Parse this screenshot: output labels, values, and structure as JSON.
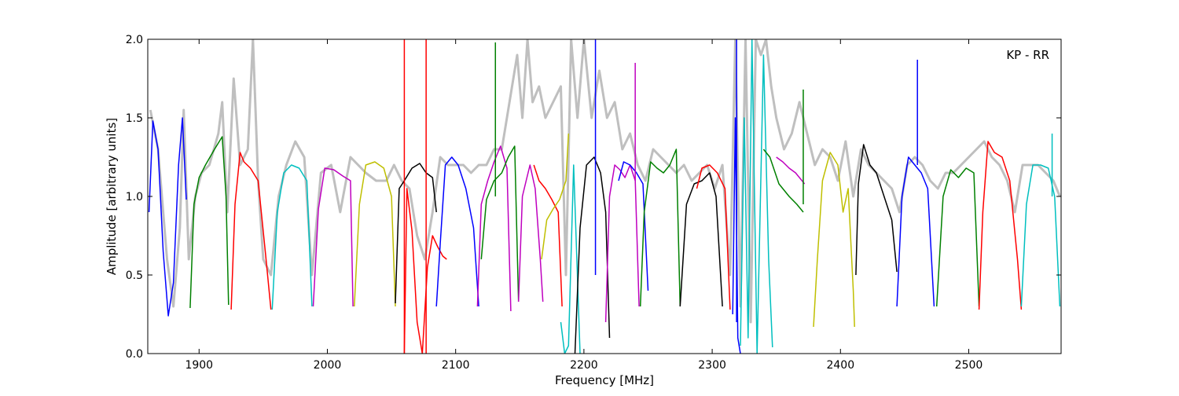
{
  "chart_data": {
    "type": "line",
    "title": "",
    "annotation": "KP - RR",
    "xlabel": "Frequency [MHz]",
    "ylabel": "Amplitude [arbitrary units]",
    "xlim": [
      1860,
      2572
    ],
    "ylim": [
      0.0,
      2.0
    ],
    "x_ticks": [
      1900,
      2000,
      2100,
      2200,
      2300,
      2400,
      2500
    ],
    "y_ticks": [
      0.0,
      0.5,
      1.0,
      1.5,
      2.0
    ],
    "y_tick_labels": [
      "0.0",
      "0.5",
      "1.0",
      "1.5",
      "2.0"
    ],
    "grid": false,
    "background_color": "#bfbfbf",
    "channel_colors": [
      "#0000ff",
      "#008000",
      "#ff0000",
      "#00bfbf",
      "#bf00bf",
      "#bfbf00",
      "#000000"
    ],
    "channels": [
      {
        "x": [
          1861,
          1864,
          1868,
          1872,
          1876,
          1880,
          1884,
          1887,
          1890
        ],
        "y": [
          0.9,
          1.48,
          1.3,
          0.65,
          0.24,
          0.45,
          1.2,
          1.5,
          0.98
        ],
        "color": "#0000ff"
      },
      {
        "x": [
          1893,
          1896,
          1900,
          1905,
          1912,
          1918,
          1921,
          1923
        ],
        "y": [
          0.29,
          0.95,
          1.12,
          1.2,
          1.3,
          1.38,
          1.0,
          0.31
        ],
        "color": "#008000"
      },
      {
        "x": [
          1925,
          1928,
          1932,
          1935,
          1940,
          1946,
          1952,
          1956
        ],
        "y": [
          0.28,
          0.95,
          1.28,
          1.22,
          1.18,
          1.1,
          0.62,
          0.28
        ],
        "color": "#ff0000"
      },
      {
        "x": [
          1957,
          1961,
          1966,
          1972,
          1978,
          1984,
          1988
        ],
        "y": [
          0.28,
          0.9,
          1.15,
          1.2,
          1.18,
          1.1,
          0.3
        ],
        "color": "#00bfbf"
      },
      {
        "x": [
          1989,
          1993,
          1998,
          2005,
          2012,
          2018,
          2020
        ],
        "y": [
          0.3,
          0.92,
          1.18,
          1.17,
          1.13,
          1.1,
          0.3
        ],
        "color": "#bf00bf"
      },
      {
        "x": [
          2021,
          2025,
          2030,
          2037,
          2044,
          2050,
          2053
        ],
        "y": [
          0.3,
          0.95,
          1.2,
          1.22,
          1.18,
          1.0,
          0.3
        ],
        "color": "#bfbf00"
      },
      {
        "x": [
          2053,
          2056,
          2060,
          2066,
          2072,
          2077,
          2082,
          2085
        ],
        "y": [
          0.32,
          1.05,
          1.1,
          1.18,
          1.21,
          1.15,
          1.12,
          0.9
        ],
        "color": "#000000"
      },
      {
        "x": [
          2060,
          2062,
          2066,
          2070,
          2074,
          2078,
          2082,
          2086,
          2090,
          2093
        ],
        "y": [
          0.0,
          1.05,
          0.78,
          0.2,
          0.0,
          0.55,
          0.75,
          0.68,
          0.62,
          0.6
        ],
        "color": "#ff0000"
      },
      {
        "x": [
          2085,
          2088,
          2092,
          2097,
          2102,
          2108,
          2114,
          2118
        ],
        "y": [
          0.3,
          0.7,
          1.2,
          1.25,
          1.2,
          1.05,
          0.8,
          0.3
        ],
        "color": "#0000ff"
      },
      {
        "x": [
          2117,
          2120,
          2125,
          2130,
          2135,
          2140,
          2143
        ],
        "y": [
          0.3,
          0.95,
          1.1,
          1.22,
          1.32,
          1.18,
          0.27
        ],
        "color": "#bf00bf"
      },
      {
        "x": [
          2120,
          2124,
          2130,
          2136,
          2141,
          2146,
          2149
        ],
        "y": [
          0.6,
          0.98,
          1.1,
          1.15,
          1.25,
          1.32,
          0.33
        ],
        "color": "#008000"
      },
      {
        "x": [
          2149,
          2152,
          2155,
          2158,
          2162,
          2166,
          2168
        ],
        "y": [
          0.33,
          1.0,
          1.1,
          1.2,
          1.05,
          0.6,
          0.33
        ],
        "color": "#bf00bf"
      },
      {
        "x": [
          2161,
          2165,
          2170,
          2175,
          2180,
          2183
        ],
        "y": [
          1.2,
          1.1,
          1.05,
          0.98,
          0.9,
          0.3
        ],
        "color": "#ff0000"
      },
      {
        "x": [
          2167,
          2171,
          2176,
          2181,
          2186,
          2188
        ],
        "y": [
          0.6,
          0.85,
          0.92,
          0.98,
          1.1,
          1.4
        ],
        "color": "#bfbf00"
      },
      {
        "x": [
          2182,
          2185,
          2188,
          2192,
          2197
        ],
        "y": [
          0.2,
          0.0,
          0.05,
          1.2,
          0.0
        ],
        "color": "#00bfbf"
      },
      {
        "x": [
          2193,
          2197,
          2202,
          2208,
          2213,
          2217,
          2220
        ],
        "y": [
          0.0,
          0.8,
          1.2,
          1.25,
          1.15,
          0.9,
          0.1
        ],
        "color": "#000000"
      },
      {
        "x": [
          2217,
          2220,
          2224,
          2228,
          2232,
          2236,
          2240,
          2243
        ],
        "y": [
          0.2,
          1.0,
          1.2,
          1.17,
          1.12,
          1.2,
          1.1,
          0.3
        ],
        "color": "#bf00bf"
      },
      {
        "x": [
          2227,
          2231,
          2236,
          2241,
          2246,
          2250
        ],
        "y": [
          1.1,
          1.22,
          1.2,
          1.15,
          1.08,
          0.4
        ],
        "color": "#0000ff"
      },
      {
        "x": [
          2244,
          2247,
          2252,
          2257,
          2262,
          2267,
          2272,
          2275
        ],
        "y": [
          0.3,
          0.9,
          1.22,
          1.18,
          1.15,
          1.2,
          1.3,
          0.3
        ],
        "color": "#008000"
      },
      {
        "x": [
          2275,
          2280,
          2286,
          2292,
          2298,
          2303,
          2308
        ],
        "y": [
          0.3,
          0.95,
          1.08,
          1.1,
          1.15,
          1.0,
          0.3
        ],
        "color": "#000000"
      },
      {
        "x": [
          2288,
          2292,
          2298,
          2304,
          2310,
          2314
        ],
        "y": [
          1.05,
          1.18,
          1.2,
          1.15,
          1.05,
          0.28
        ],
        "color": "#ff0000"
      },
      {
        "x": [
          2316,
          2318,
          2320,
          2322
        ],
        "y": [
          0.25,
          1.5,
          0.1,
          0.0
        ],
        "color": "#0000ff"
      },
      {
        "x": [
          2322,
          2325,
          2328,
          2331,
          2335,
          2340,
          2344,
          2347
        ],
        "y": [
          0.05,
          1.5,
          0.1,
          2.0,
          0.0,
          1.9,
          0.6,
          0.04
        ],
        "color": "#00bfbf"
      },
      {
        "x": [
          2340,
          2345,
          2352,
          2360,
          2366,
          2371
        ],
        "y": [
          1.3,
          1.25,
          1.08,
          1.0,
          0.95,
          0.9
        ],
        "color": "#008000"
      },
      {
        "x": [
          2350,
          2355,
          2360,
          2365,
          2368,
          2372
        ],
        "y": [
          1.25,
          1.22,
          1.18,
          1.15,
          1.12,
          1.08
        ],
        "color": "#bf00bf"
      },
      {
        "x": [
          2379,
          2382,
          2386,
          2392,
          2398,
          2402,
          2406,
          2410,
          2411
        ],
        "y": [
          0.17,
          0.6,
          1.1,
          1.28,
          1.2,
          0.9,
          1.05,
          0.4,
          0.17
        ],
        "color": "#bfbf00"
      },
      {
        "x": [
          2412,
          2414,
          2418,
          2423,
          2428,
          2434,
          2440,
          2444
        ],
        "y": [
          0.5,
          1.08,
          1.33,
          1.2,
          1.15,
          1.0,
          0.85,
          0.52
        ],
        "color": "#000000"
      },
      {
        "x": [
          2444,
          2448,
          2453,
          2458,
          2463,
          2468,
          2473
        ],
        "y": [
          0.3,
          1.0,
          1.25,
          1.2,
          1.15,
          1.05,
          0.3
        ],
        "color": "#0000ff"
      },
      {
        "x": [
          2475,
          2480,
          2486,
          2492,
          2498,
          2504,
          2508
        ],
        "y": [
          0.3,
          1.0,
          1.17,
          1.12,
          1.18,
          1.15,
          0.3
        ],
        "color": "#008000"
      },
      {
        "x": [
          2508,
          2511,
          2515,
          2520,
          2526,
          2532,
          2538,
          2541
        ],
        "y": [
          0.28,
          0.9,
          1.35,
          1.28,
          1.25,
          1.1,
          0.6,
          0.28
        ],
        "color": "#ff0000"
      },
      {
        "x": [
          2541,
          2545,
          2550,
          2556,
          2562,
          2567,
          2571
        ],
        "y": [
          0.3,
          0.95,
          1.2,
          1.2,
          1.18,
          1.0,
          0.3
        ],
        "color": "#00bfbf"
      }
    ],
    "background_trace": {
      "x": [
        1862,
        1868,
        1875,
        1880,
        1885,
        1888,
        1892,
        1897,
        1902,
        1908,
        1915,
        1918,
        1922,
        1927,
        1932,
        1938,
        1942,
        1946,
        1950,
        1956,
        1962,
        1968,
        1975,
        1982,
        1988,
        1995,
        2003,
        2010,
        2018,
        2024,
        2030,
        2038,
        2046,
        2052,
        2058,
        2064,
        2070,
        2076,
        2082,
        2088,
        2094,
        2100,
        2106,
        2112,
        2118,
        2124,
        2130,
        2136,
        2142,
        2148,
        2152,
        2156,
        2160,
        2165,
        2170,
        2176,
        2182,
        2186,
        2190,
        2195,
        2200,
        2206,
        2212,
        2218,
        2224,
        2230,
        2236,
        2242,
        2248,
        2254,
        2260,
        2266,
        2272,
        2278,
        2284,
        2290,
        2296,
        2302,
        2308,
        2314,
        2318,
        2322,
        2326,
        2330,
        2334,
        2338,
        2342,
        2346,
        2350,
        2356,
        2362,
        2368,
        2374,
        2380,
        2386,
        2392,
        2398,
        2404,
        2410,
        2416,
        2422,
        2428,
        2434,
        2440,
        2446,
        2452,
        2458,
        2464,
        2470,
        2476,
        2482,
        2488,
        2494,
        2500,
        2506,
        2512,
        2518,
        2524,
        2530,
        2536,
        2542,
        2548,
        2554,
        2560,
        2566,
        2571
      ],
      "y": [
        1.55,
        1.3,
        0.6,
        0.3,
        0.8,
        1.55,
        0.6,
        1.0,
        1.15,
        1.2,
        1.4,
        1.6,
        0.9,
        1.75,
        1.2,
        1.3,
        2.0,
        1.1,
        0.6,
        0.5,
        1.0,
        1.2,
        1.35,
        1.25,
        0.5,
        1.15,
        1.2,
        0.9,
        1.25,
        1.2,
        1.15,
        1.1,
        1.1,
        1.2,
        1.1,
        1.05,
        0.75,
        0.6,
        0.9,
        1.25,
        1.2,
        1.2,
        1.2,
        1.15,
        1.2,
        1.2,
        1.3,
        1.3,
        1.6,
        1.9,
        1.5,
        2.0,
        1.6,
        1.7,
        1.5,
        1.6,
        1.7,
        0.5,
        2.0,
        1.5,
        2.0,
        1.5,
        1.8,
        1.5,
        1.6,
        1.3,
        1.4,
        1.2,
        1.1,
        1.3,
        1.25,
        1.2,
        1.15,
        1.2,
        1.1,
        1.15,
        1.2,
        1.05,
        1.2,
        0.5,
        2.0,
        0.3,
        2.0,
        0.2,
        2.0,
        1.9,
        2.0,
        1.7,
        1.5,
        1.3,
        1.4,
        1.6,
        1.4,
        1.2,
        1.3,
        1.25,
        1.1,
        1.35,
        1.0,
        1.3,
        1.2,
        1.15,
        1.1,
        1.05,
        0.9,
        1.2,
        1.25,
        1.2,
        1.1,
        1.05,
        1.15,
        1.15,
        1.2,
        1.25,
        1.3,
        1.35,
        1.25,
        1.2,
        1.1,
        0.9,
        1.2,
        1.2,
        1.2,
        1.15,
        1.1,
        1.0
      ]
    },
    "spikes": [
      {
        "x": 2060,
        "y0": 0.0,
        "y1": 2.0,
        "color": "#ff0000"
      },
      {
        "x": 2077,
        "y0": 0.0,
        "y1": 2.0,
        "color": "#ff0000"
      },
      {
        "x": 2131,
        "y0": 1.0,
        "y1": 1.98,
        "color": "#008000"
      },
      {
        "x": 2209,
        "y0": 0.5,
        "y1": 2.0,
        "color": "#0000ff"
      },
      {
        "x": 2240,
        "y0": 1.1,
        "y1": 1.85,
        "color": "#bf00bf"
      },
      {
        "x": 2319,
        "y0": 0.2,
        "y1": 2.0,
        "color": "#0000ff"
      },
      {
        "x": 2460,
        "y0": 1.2,
        "y1": 1.87,
        "color": "#0000ff"
      },
      {
        "x": 2371,
        "y0": 0.95,
        "y1": 1.68,
        "color": "#008000"
      },
      {
        "x": 2565,
        "y0": 1.0,
        "y1": 1.4,
        "color": "#00bfbf"
      }
    ]
  }
}
